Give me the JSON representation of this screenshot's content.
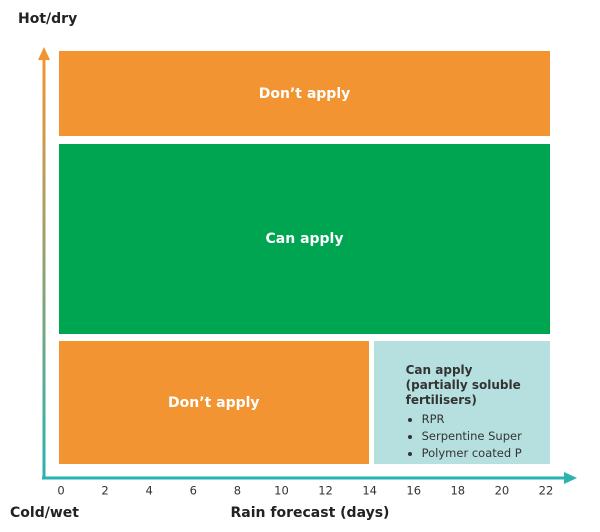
{
  "y_axis": {
    "top_label": "Hot/dry",
    "bottom_label": "Cold/wet"
  },
  "x_axis": {
    "label": "Rain forecast (days)",
    "lim": [
      0,
      22
    ],
    "ticks": [
      0,
      2,
      4,
      6,
      8,
      10,
      12,
      14,
      16,
      18,
      20,
      22
    ]
  },
  "zones": [
    {
      "label": "Don’t apply",
      "x": [
        0,
        22
      ],
      "color": "#f39433"
    },
    {
      "label": "Can apply",
      "x": [
        0,
        22
      ],
      "color": "#00a551"
    },
    {
      "label": "Don’t apply",
      "x": [
        0,
        14
      ],
      "color": "#f39433"
    },
    {
      "label": "Can apply (partially soluble fertilisers)",
      "x": [
        14,
        22
      ],
      "color": "#b6e0df",
      "items": [
        "RPR",
        "Serpentine Super",
        "Polymer coated P"
      ]
    }
  ]
}
